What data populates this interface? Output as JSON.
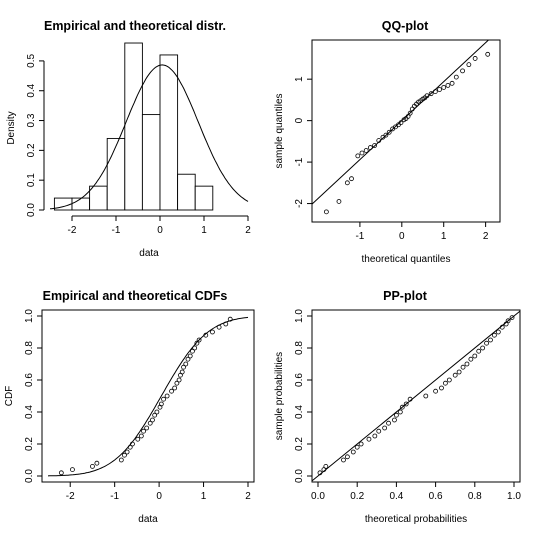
{
  "chart_data": [
    {
      "id": "density",
      "type": "bar",
      "title": "Empirical and theoretical distr.",
      "xlabel": "data",
      "ylabel": "Density",
      "xlim": [
        -2.5,
        2.0
      ],
      "ylim": [
        0,
        0.55
      ],
      "xticks": [
        -2,
        -1,
        0,
        1,
        2
      ],
      "yticks": [
        0.0,
        0.1,
        0.2,
        0.3,
        0.4,
        0.5
      ],
      "bin_edges": [
        -2.4,
        -2.0,
        -1.6,
        -1.2,
        -0.8,
        -0.4,
        0.0,
        0.4,
        0.8,
        1.2,
        1.6,
        2.0
      ],
      "values": [
        0.04,
        0.04,
        0.08,
        0.24,
        0.56,
        0.32,
        0.52,
        0.12,
        0.08,
        0.0,
        0.0
      ],
      "curve": {
        "type": "normal",
        "mean": 0.05,
        "sd": 0.82
      }
    },
    {
      "id": "qq",
      "type": "scatter",
      "title": "QQ-plot",
      "xlabel": "theoretical quantiles",
      "ylabel": "sample quantiles",
      "xlim": [
        -2.0,
        2.2
      ],
      "ylim": [
        -2.3,
        1.8
      ],
      "xticks": [
        -1,
        0,
        1,
        2
      ],
      "yticks": [
        -2,
        -1,
        0,
        1
      ],
      "points": [
        [
          -1.8,
          -2.2
        ],
        [
          -1.5,
          -1.95
        ],
        [
          -1.3,
          -1.5
        ],
        [
          -1.2,
          -1.4
        ],
        [
          -1.05,
          -0.85
        ],
        [
          -0.95,
          -0.78
        ],
        [
          -0.85,
          -0.72
        ],
        [
          -0.75,
          -0.65
        ],
        [
          -0.65,
          -0.6
        ],
        [
          -0.55,
          -0.48
        ],
        [
          -0.45,
          -0.4
        ],
        [
          -0.38,
          -0.35
        ],
        [
          -0.3,
          -0.28
        ],
        [
          -0.22,
          -0.2
        ],
        [
          -0.15,
          -0.15
        ],
        [
          -0.08,
          -0.1
        ],
        [
          -0.02,
          -0.05
        ],
        [
          0.05,
          0.02
        ],
        [
          0.1,
          0.05
        ],
        [
          0.15,
          0.1
        ],
        [
          0.2,
          0.18
        ],
        [
          0.25,
          0.28
        ],
        [
          0.3,
          0.35
        ],
        [
          0.35,
          0.4
        ],
        [
          0.4,
          0.45
        ],
        [
          0.45,
          0.48
        ],
        [
          0.5,
          0.52
        ],
        [
          0.55,
          0.55
        ],
        [
          0.6,
          0.6
        ],
        [
          0.7,
          0.65
        ],
        [
          0.8,
          0.7
        ],
        [
          0.9,
          0.75
        ],
        [
          1.0,
          0.8
        ],
        [
          1.1,
          0.85
        ],
        [
          1.2,
          0.9
        ],
        [
          1.3,
          1.05
        ],
        [
          1.45,
          1.2
        ],
        [
          1.6,
          1.35
        ],
        [
          1.75,
          1.5
        ],
        [
          2.05,
          1.6
        ]
      ],
      "line": {
        "slope": 0.94,
        "intercept": -0.0
      }
    },
    {
      "id": "cdf",
      "type": "scatter",
      "title": "Empirical and theoretical CDFs",
      "xlabel": "data",
      "ylabel": "CDF",
      "xlim": [
        -2.5,
        2.0
      ],
      "ylim": [
        0,
        1.0
      ],
      "xticks": [
        -2,
        -1,
        0,
        1,
        2
      ],
      "yticks": [
        0.0,
        0.2,
        0.4,
        0.6,
        0.8,
        1.0
      ],
      "points": [
        [
          -2.2,
          0.02
        ],
        [
          -1.95,
          0.04
        ],
        [
          -1.5,
          0.06
        ],
        [
          -1.4,
          0.08
        ],
        [
          -0.85,
          0.1
        ],
        [
          -0.78,
          0.13
        ],
        [
          -0.72,
          0.15
        ],
        [
          -0.65,
          0.18
        ],
        [
          -0.6,
          0.2
        ],
        [
          -0.48,
          0.23
        ],
        [
          -0.4,
          0.25
        ],
        [
          -0.35,
          0.28
        ],
        [
          -0.28,
          0.3
        ],
        [
          -0.2,
          0.33
        ],
        [
          -0.15,
          0.35
        ],
        [
          -0.1,
          0.38
        ],
        [
          -0.05,
          0.4
        ],
        [
          0.02,
          0.43
        ],
        [
          0.05,
          0.45
        ],
        [
          0.1,
          0.48
        ],
        [
          0.18,
          0.5
        ],
        [
          0.28,
          0.53
        ],
        [
          0.35,
          0.55
        ],
        [
          0.4,
          0.58
        ],
        [
          0.45,
          0.6
        ],
        [
          0.48,
          0.63
        ],
        [
          0.52,
          0.65
        ],
        [
          0.55,
          0.68
        ],
        [
          0.6,
          0.7
        ],
        [
          0.65,
          0.73
        ],
        [
          0.7,
          0.75
        ],
        [
          0.75,
          0.78
        ],
        [
          0.8,
          0.8
        ],
        [
          0.85,
          0.83
        ],
        [
          0.9,
          0.85
        ],
        [
          1.05,
          0.88
        ],
        [
          1.2,
          0.9
        ],
        [
          1.35,
          0.93
        ],
        [
          1.5,
          0.95
        ],
        [
          1.6,
          0.98
        ]
      ],
      "curve": {
        "type": "normal-cdf",
        "mean": 0.05,
        "sd": 0.82
      }
    },
    {
      "id": "pp",
      "type": "scatter",
      "title": "PP-plot",
      "xlabel": "theoretical probabilities",
      "ylabel": "sample probabilities",
      "xlim": [
        0,
        1.0
      ],
      "ylim": [
        0,
        1.0
      ],
      "xticks": [
        0.0,
        0.2,
        0.4,
        0.6,
        0.8,
        1.0
      ],
      "yticks": [
        0.0,
        0.2,
        0.4,
        0.6,
        0.8,
        1.0
      ],
      "points": [
        [
          0.01,
          0.02
        ],
        [
          0.03,
          0.04
        ],
        [
          0.04,
          0.06
        ],
        [
          0.13,
          0.1
        ],
        [
          0.15,
          0.12
        ],
        [
          0.18,
          0.15
        ],
        [
          0.2,
          0.18
        ],
        [
          0.22,
          0.2
        ],
        [
          0.26,
          0.23
        ],
        [
          0.29,
          0.25
        ],
        [
          0.31,
          0.28
        ],
        [
          0.34,
          0.3
        ],
        [
          0.36,
          0.33
        ],
        [
          0.39,
          0.35
        ],
        [
          0.4,
          0.38
        ],
        [
          0.42,
          0.4
        ],
        [
          0.43,
          0.43
        ],
        [
          0.45,
          0.45
        ],
        [
          0.47,
          0.48
        ],
        [
          0.55,
          0.5
        ],
        [
          0.6,
          0.53
        ],
        [
          0.63,
          0.55
        ],
        [
          0.65,
          0.58
        ],
        [
          0.67,
          0.6
        ],
        [
          0.7,
          0.63
        ],
        [
          0.72,
          0.65
        ],
        [
          0.74,
          0.68
        ],
        [
          0.76,
          0.7
        ],
        [
          0.78,
          0.73
        ],
        [
          0.8,
          0.75
        ],
        [
          0.82,
          0.78
        ],
        [
          0.84,
          0.8
        ],
        [
          0.86,
          0.83
        ],
        [
          0.88,
          0.85
        ],
        [
          0.9,
          0.88
        ],
        [
          0.92,
          0.9
        ],
        [
          0.94,
          0.93
        ],
        [
          0.96,
          0.95
        ],
        [
          0.97,
          0.97
        ],
        [
          0.99,
          0.99
        ]
      ],
      "line": {
        "slope": 1,
        "intercept": 0
      }
    }
  ]
}
